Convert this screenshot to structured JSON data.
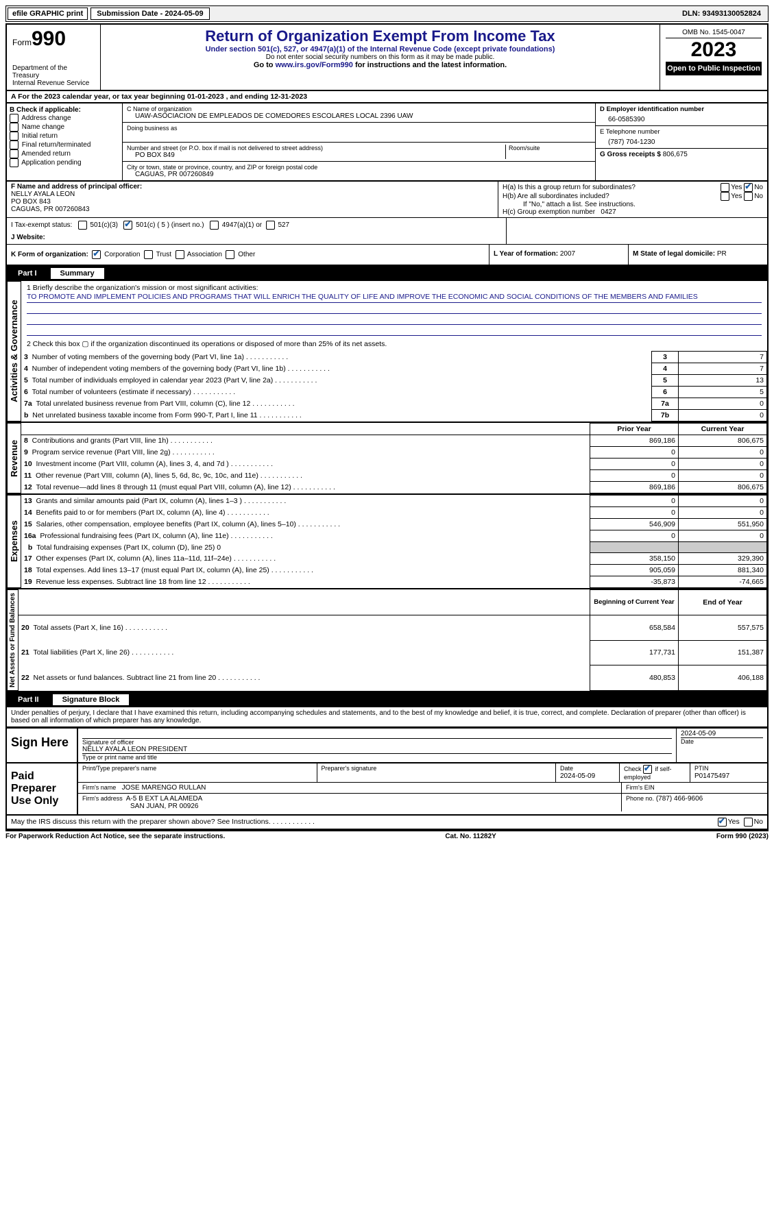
{
  "topbar": {
    "efile": "efile GRAPHIC print",
    "submission": "Submission Date - 2024-05-09",
    "dln": "DLN: 93493130052824"
  },
  "header": {
    "form_prefix": "Form",
    "form_number": "990",
    "title": "Return of Organization Exempt From Income Tax",
    "subtitle": "Under section 501(c), 527, or 4947(a)(1) of the Internal Revenue Code (except private foundations)",
    "warning": "Do not enter social security numbers on this form as it may be made public.",
    "goto": "Go to www.irs.gov/Form990 for instructions and the latest information.",
    "dept": "Department of the Treasury",
    "irs": "Internal Revenue Service",
    "omb": "OMB No. 1545-0047",
    "year": "2023",
    "open": "Open to Public Inspection"
  },
  "sectionA": {
    "label": "A For the 2023 calendar year, or tax year beginning 01-01-2023   , and ending 12-31-2023"
  },
  "sectionB": {
    "header": "B Check if applicable:",
    "items": [
      "Address change",
      "Name change",
      "Initial return",
      "Final return/terminated",
      "Amended return",
      "Application pending"
    ]
  },
  "sectionC": {
    "name_label": "C Name of organization",
    "name": "UAW-ASOCIACION DE EMPLEADOS DE COMEDORES ESCOLARES LOCAL 2396 UAW",
    "dba_label": "Doing business as",
    "addr_label": "Number and street (or P.O. box if mail is not delivered to street address)",
    "addr": "PO BOX 849",
    "room_label": "Room/suite",
    "city_label": "City or town, state or province, country, and ZIP or foreign postal code",
    "city": "CAGUAS, PR  007260849"
  },
  "sectionD": {
    "ein_label": "D Employer identification number",
    "ein": "66-0585390"
  },
  "sectionE": {
    "tel_label": "E Telephone number",
    "tel": "(787) 704-1230"
  },
  "sectionG": {
    "gross_label": "G Gross receipts $",
    "gross": "806,675"
  },
  "sectionF": {
    "label": "F  Name and address of principal officer:",
    "name": "NELLY AYALA LEON",
    "addr1": "PO BOX 843",
    "addr2": "CAGUAS, PR  007260843"
  },
  "sectionH": {
    "ha": "H(a)  Is this a group return for subordinates?",
    "hb": "H(b)  Are all subordinates included?",
    "hb_note": "If \"No,\" attach a list. See instructions.",
    "hc": "H(c)  Group exemption number",
    "hc_val": "0427",
    "yes": "Yes",
    "no": "No"
  },
  "sectionI": {
    "label": "I    Tax-exempt status:",
    "opt1": "501(c)(3)",
    "opt2": "501(c) ( 5 ) (insert no.)",
    "opt3": "4947(a)(1) or",
    "opt4": "527"
  },
  "sectionJ": {
    "label": "J   Website:"
  },
  "sectionK": {
    "label": "K Form of organization:",
    "opts": [
      "Corporation",
      "Trust",
      "Association",
      "Other"
    ]
  },
  "sectionL": {
    "label": "L Year of formation:",
    "val": "2007"
  },
  "sectionM": {
    "label": "M State of legal domicile:",
    "val": "PR"
  },
  "part1": {
    "num": "Part I",
    "title": "Summary"
  },
  "summary": {
    "line1_label": "1  Briefly describe the organization's mission or most significant activities:",
    "line1_text": "TO PROMOTE AND IMPLEMENT POLICIES AND PROGRAMS THAT WILL ENRICH THE QUALITY OF LIFE AND IMPROVE THE ECONOMIC AND SOCIAL CONDITIONS OF THE MEMBERS AND FAMILIES",
    "line2": "2   Check this box  ▢  if the organization discontinued its operations or disposed of more than 25% of its net assets.",
    "lines": [
      {
        "n": "3",
        "t": "Number of voting members of the governing body (Part VI, line 1a)",
        "box": "3",
        "v": "7"
      },
      {
        "n": "4",
        "t": "Number of independent voting members of the governing body (Part VI, line 1b)",
        "box": "4",
        "v": "7"
      },
      {
        "n": "5",
        "t": "Total number of individuals employed in calendar year 2023 (Part V, line 2a)",
        "box": "5",
        "v": "13"
      },
      {
        "n": "6",
        "t": "Total number of volunteers (estimate if necessary)",
        "box": "6",
        "v": "5"
      },
      {
        "n": "7a",
        "t": "Total unrelated business revenue from Part VIII, column (C), line 12",
        "box": "7a",
        "v": "0"
      },
      {
        "n": "b",
        "t": "Net unrelated business taxable income from Form 990-T, Part I, line 11",
        "box": "7b",
        "v": "0"
      }
    ],
    "prior_header": "Prior Year",
    "current_header": "Current Year",
    "revenue_label": "Revenue",
    "revenue": [
      {
        "n": "8",
        "t": "Contributions and grants (Part VIII, line 1h)",
        "p": "869,186",
        "c": "806,675"
      },
      {
        "n": "9",
        "t": "Program service revenue (Part VIII, line 2g)",
        "p": "0",
        "c": "0"
      },
      {
        "n": "10",
        "t": "Investment income (Part VIII, column (A), lines 3, 4, and 7d )",
        "p": "0",
        "c": "0"
      },
      {
        "n": "11",
        "t": "Other revenue (Part VIII, column (A), lines 5, 6d, 8c, 9c, 10c, and 11e)",
        "p": "0",
        "c": "0"
      },
      {
        "n": "12",
        "t": "Total revenue—add lines 8 through 11 (must equal Part VIII, column (A), line 12)",
        "p": "869,186",
        "c": "806,675"
      }
    ],
    "expenses_label": "Expenses",
    "expenses": [
      {
        "n": "13",
        "t": "Grants and similar amounts paid (Part IX, column (A), lines 1–3 )",
        "p": "0",
        "c": "0"
      },
      {
        "n": "14",
        "t": "Benefits paid to or for members (Part IX, column (A), line 4)",
        "p": "0",
        "c": "0"
      },
      {
        "n": "15",
        "t": "Salaries, other compensation, employee benefits (Part IX, column (A), lines 5–10)",
        "p": "546,909",
        "c": "551,950"
      },
      {
        "n": "16a",
        "t": "Professional fundraising fees (Part IX, column (A), line 11e)",
        "p": "0",
        "c": "0"
      },
      {
        "n": "b",
        "t": "Total fundraising expenses (Part IX, column (D), line 25) 0",
        "shade": true
      },
      {
        "n": "17",
        "t": "Other expenses (Part IX, column (A), lines 11a–11d, 11f–24e)",
        "p": "358,150",
        "c": "329,390"
      },
      {
        "n": "18",
        "t": "Total expenses. Add lines 13–17 (must equal Part IX, column (A), line 25)",
        "p": "905,059",
        "c": "881,340"
      },
      {
        "n": "19",
        "t": "Revenue less expenses. Subtract line 18 from line 12",
        "p": "-35,873",
        "c": "-74,665"
      }
    ],
    "net_label": "Net Assets or Fund Balances",
    "begin_header": "Beginning of Current Year",
    "end_header": "End of Year",
    "net": [
      {
        "n": "20",
        "t": "Total assets (Part X, line 16)",
        "p": "658,584",
        "c": "557,575"
      },
      {
        "n": "21",
        "t": "Total liabilities (Part X, line 26)",
        "p": "177,731",
        "c": "151,387"
      },
      {
        "n": "22",
        "t": "Net assets or fund balances. Subtract line 21 from line 20",
        "p": "480,853",
        "c": "406,188"
      }
    ],
    "gov_label": "Activities & Governance"
  },
  "part2": {
    "num": "Part II",
    "title": "Signature Block",
    "declaration": "Under penalties of perjury, I declare that I have examined this return, including accompanying schedules and statements, and to the best of my knowledge and belief, it is true, correct, and complete. Declaration of preparer (other than officer) is based on all information of which preparer has any knowledge."
  },
  "sign": {
    "here": "Sign Here",
    "sig_officer": "Signature of officer",
    "sig_date": "2024-05-09",
    "name_title": "NELLY AYALA LEON  PRESIDENT",
    "type_label": "Type or print name and title",
    "date_label": "Date"
  },
  "preparer": {
    "label": "Paid Preparer Use Only",
    "print_label": "Print/Type preparer's name",
    "sig_label": "Preparer's signature",
    "date_label": "Date",
    "date": "2024-05-09",
    "check_label": "Check",
    "self_emp": "if self-employed",
    "ptin_label": "PTIN",
    "ptin": "P01475497",
    "firm_name_label": "Firm's name",
    "firm_name": "JOSE MARENGO RULLAN",
    "firm_ein_label": "Firm's EIN",
    "firm_addr_label": "Firm's address",
    "firm_addr1": "A-5 B EXT LA ALAMEDA",
    "firm_addr2": "SAN JUAN, PR  00926",
    "phone_label": "Phone no.",
    "phone": "(787) 466-9606"
  },
  "discuss": {
    "text": "May the IRS discuss this return with the preparer shown above? See Instructions.",
    "yes": "Yes",
    "no": "No"
  },
  "footer": {
    "left": "For Paperwork Reduction Act Notice, see the separate instructions.",
    "mid": "Cat. No. 11282Y",
    "right": "Form 990 (2023)"
  }
}
